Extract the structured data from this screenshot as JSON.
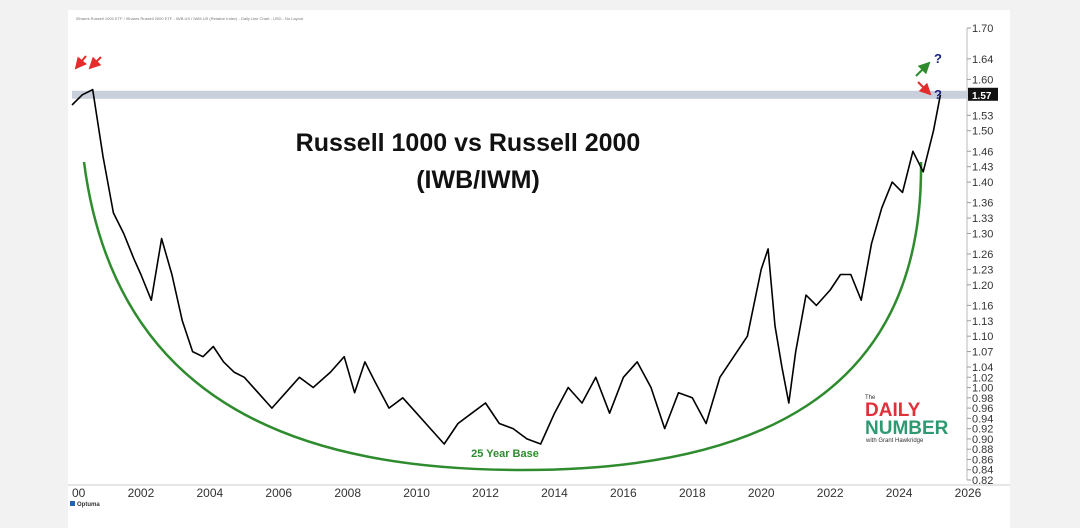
{
  "chart_data": {
    "type": "line",
    "header": "iShares Russell 1000 ETF / iShares Russell 2000 ETF - IWB.US / IWM.US (Relative Index) - Daily Line Chart - USD - No Layout",
    "title": "Russell 1000 vs Russell 2000",
    "subtitle": "(IWB/IWM)",
    "ylim": [
      0.82,
      1.7
    ],
    "xlim": [
      2000.0,
      2026.0
    ],
    "y_ticks": [
      "1.70",
      "1.64",
      "1.60",
      "1.57",
      "1.53",
      "1.50",
      "1.46",
      "1.43",
      "1.40",
      "1.36",
      "1.33",
      "1.30",
      "1.26",
      "1.23",
      "1.20",
      "1.16",
      "1.13",
      "1.10",
      "1.07",
      "1.04",
      "1.02",
      "1.00",
      "0.98",
      "0.96",
      "0.94",
      "0.92",
      "0.90",
      "0.88",
      "0.86",
      "0.84",
      "0.82"
    ],
    "x_ticks": [
      "00",
      "2002",
      "2004",
      "2006",
      "2008",
      "2010",
      "2012",
      "2014",
      "2016",
      "2018",
      "2020",
      "2022",
      "2024",
      "2026"
    ],
    "last_value": "1.57",
    "resistance_level": 1.57,
    "base_label": "25 Year Base",
    "series": [
      {
        "x": [
          2000.0,
          2000.3,
          2000.6,
          2000.9,
          2001.2,
          2001.5,
          2001.8,
          2002.0,
          2002.3,
          2002.6,
          2002.9,
          2003.2,
          2003.5,
          2003.8,
          2004.1,
          2004.4,
          2004.7,
          2005.0,
          2005.4,
          2005.8,
          2006.2,
          2006.6,
          2007.0,
          2007.5,
          2007.9,
          2008.2,
          2008.5,
          2008.8,
          2009.2,
          2009.6,
          2010.0,
          2010.4,
          2010.8,
          2011.2,
          2011.6,
          2012.0,
          2012.4,
          2012.8,
          2013.2,
          2013.6,
          2014.0,
          2014.4,
          2014.8,
          2015.2,
          2015.6,
          2016.0,
          2016.4,
          2016.8,
          2017.2,
          2017.6,
          2018.0,
          2018.4,
          2018.8,
          2019.2,
          2019.6,
          2020.0,
          2020.2,
          2020.4,
          2020.6,
          2020.8,
          2021.0,
          2021.3,
          2021.6,
          2022.0,
          2022.3,
          2022.6,
          2022.9,
          2023.2,
          2023.5,
          2023.8,
          2024.1,
          2024.4,
          2024.7,
          2025.0,
          2025.2
        ],
        "values": [
          1.55,
          1.57,
          1.58,
          1.45,
          1.34,
          1.3,
          1.25,
          1.22,
          1.17,
          1.29,
          1.22,
          1.13,
          1.07,
          1.06,
          1.08,
          1.05,
          1.03,
          1.02,
          0.99,
          0.96,
          0.99,
          1.02,
          1.0,
          1.03,
          1.06,
          0.99,
          1.05,
          1.01,
          0.96,
          0.98,
          0.95,
          0.92,
          0.89,
          0.93,
          0.95,
          0.97,
          0.93,
          0.92,
          0.9,
          0.89,
          0.95,
          1.0,
          0.97,
          1.02,
          0.95,
          1.02,
          1.05,
          1.0,
          0.92,
          0.99,
          0.98,
          0.93,
          1.02,
          1.06,
          1.1,
          1.23,
          1.27,
          1.12,
          1.04,
          0.97,
          1.07,
          1.18,
          1.16,
          1.19,
          1.22,
          1.22,
          1.17,
          1.28,
          1.35,
          1.4,
          1.38,
          1.46,
          1.42,
          1.5,
          1.57
        ]
      }
    ]
  },
  "branding": {
    "top_word": "The",
    "line1": "DAILY",
    "line2": "NUMBER",
    "line3": "with Grant Hawkridge",
    "optuma": "Optuma"
  },
  "question_marks": [
    "?",
    "?"
  ],
  "colors": {
    "line": "#000000",
    "arc": "#2e8b2e",
    "resistance_band": "#c9d0dc",
    "arrow_red": "#e52b2b",
    "arrow_green": "#2e8b2e",
    "question": "#1a237e"
  }
}
